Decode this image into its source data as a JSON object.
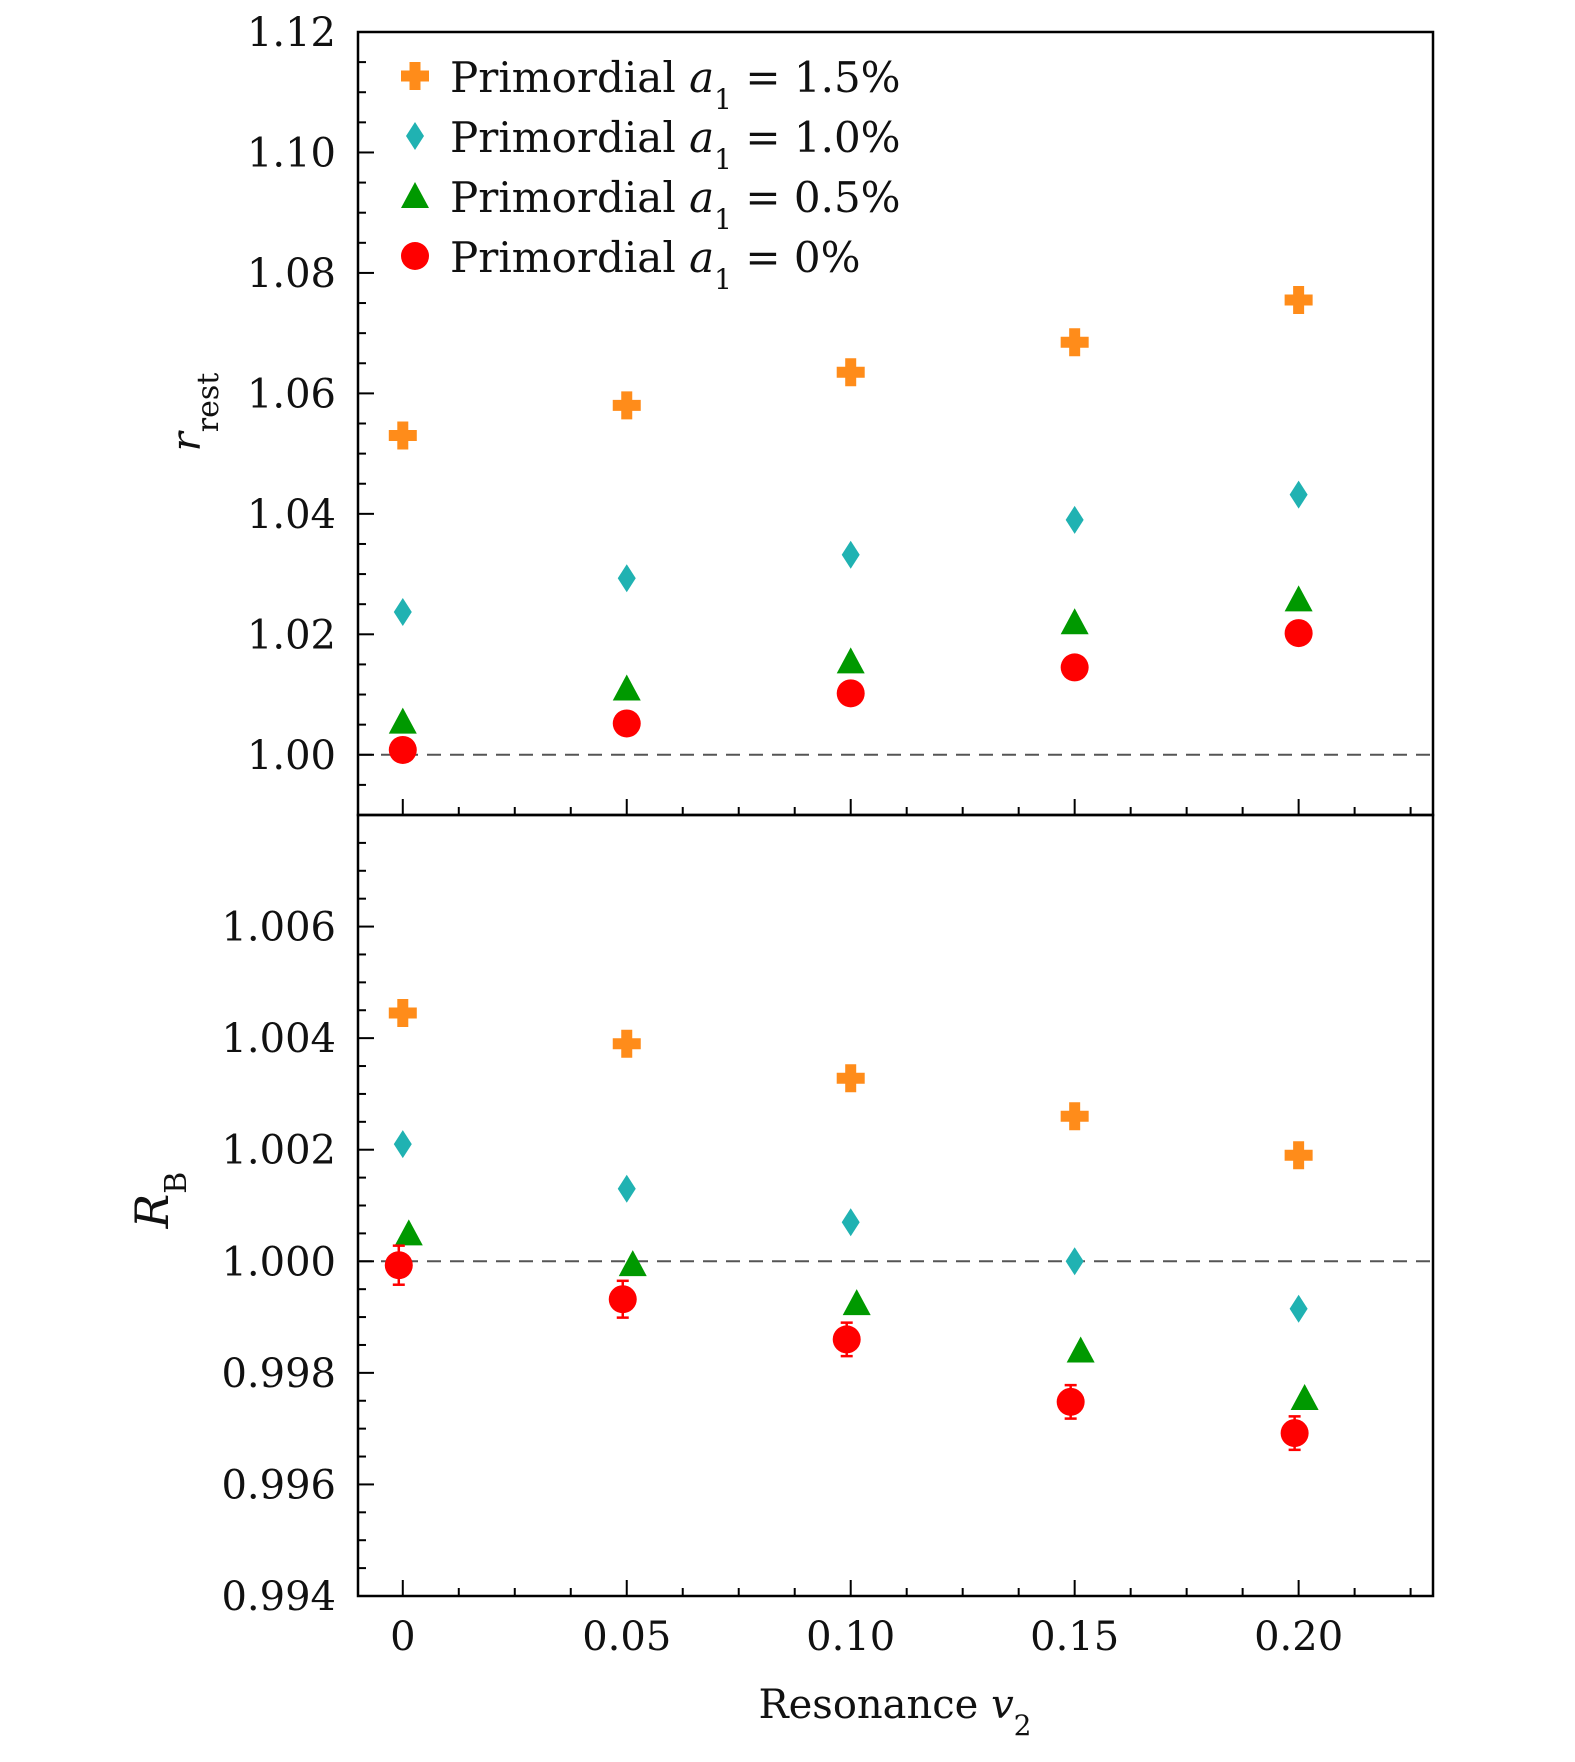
{
  "chart_data": {
    "type": "scatter",
    "x": [
      0,
      0.05,
      0.1,
      0.15,
      0.2
    ],
    "xlabel": "Resonance v2",
    "xlim": [
      -0.01,
      0.23
    ],
    "x_tick_values": [
      0,
      0.05,
      0.1,
      0.15,
      0.2
    ],
    "x_tick_labels": [
      "0",
      "0.05",
      "0.10",
      "0.15",
      "0.20"
    ],
    "legend": {
      "location": "top-left",
      "entries": [
        "Primordial a1 = 1.5%",
        "Primordial a1 = 1.0%",
        "Primordial a1 = 0.5%",
        "Primordial a1 = 0%"
      ]
    },
    "panels": [
      {
        "id": "top",
        "ylabel": "r rest",
        "ylim": [
          0.99,
          1.12
        ],
        "y_tick_values": [
          1.0,
          1.02,
          1.04,
          1.06,
          1.08,
          1.1,
          1.12
        ],
        "y_tick_labels": [
          "1.00",
          "1.02",
          "1.04",
          "1.06",
          "1.08",
          "1.10",
          "1.12"
        ],
        "reference_line": 1.0,
        "series": [
          {
            "name": "Primordial a1 = 1.5%",
            "marker": "plus",
            "color": "#FF8C1A",
            "values": [
              1.053,
              1.058,
              1.0635,
              1.0685,
              1.0755
            ]
          },
          {
            "name": "Primordial a1 = 1.0%",
            "marker": "diamond",
            "color": "#20B2B2",
            "values": [
              1.0237,
              1.0293,
              1.0332,
              1.039,
              1.0432
            ]
          },
          {
            "name": "Primordial a1 = 0.5%",
            "marker": "triangle",
            "color": "#009900",
            "values": [
              1.0055,
              1.011,
              1.0155,
              1.022,
              1.0258
            ]
          },
          {
            "name": "Primordial a1 = 0%",
            "marker": "circle",
            "color": "#FF0000",
            "values": [
              1.0008,
              1.0052,
              1.0102,
              1.0145,
              1.0202
            ]
          }
        ]
      },
      {
        "id": "bottom",
        "ylabel": "R B",
        "ylim": [
          0.994,
          1.008
        ],
        "y_tick_values": [
          0.994,
          0.996,
          0.998,
          1.0,
          1.002,
          1.004,
          1.006
        ],
        "y_tick_labels": [
          "0.994",
          "0.996",
          "0.998",
          "1.000",
          "1.002",
          "1.004",
          "1.006"
        ],
        "reference_line": 1.0,
        "series": [
          {
            "name": "Primordial a1 = 1.5%",
            "marker": "plus",
            "color": "#FF8C1A",
            "values": [
              1.00445,
              1.0039,
              1.00328,
              1.0026,
              1.0019
            ]
          },
          {
            "name": "Primordial a1 = 1.0%",
            "marker": "diamond",
            "color": "#20B2B2",
            "values": [
              1.0021,
              1.0013,
              1.0007,
              1.0,
              0.99915
            ]
          },
          {
            "name": "Primordial a1 = 0.5%",
            "marker": "triangle",
            "color": "#009900",
            "values": [
              1.0005,
              0.99995,
              0.99925,
              0.9984,
              0.99755
            ]
          },
          {
            "name": "Primordial a1 = 0%",
            "marker": "circle",
            "color": "#FF0000",
            "values": [
              0.99993,
              0.99932,
              0.9986,
              0.99748,
              0.99692
            ],
            "error": [
              0.00035,
              0.00033,
              0.0003,
              0.0003,
              0.0003
            ]
          }
        ]
      }
    ]
  }
}
